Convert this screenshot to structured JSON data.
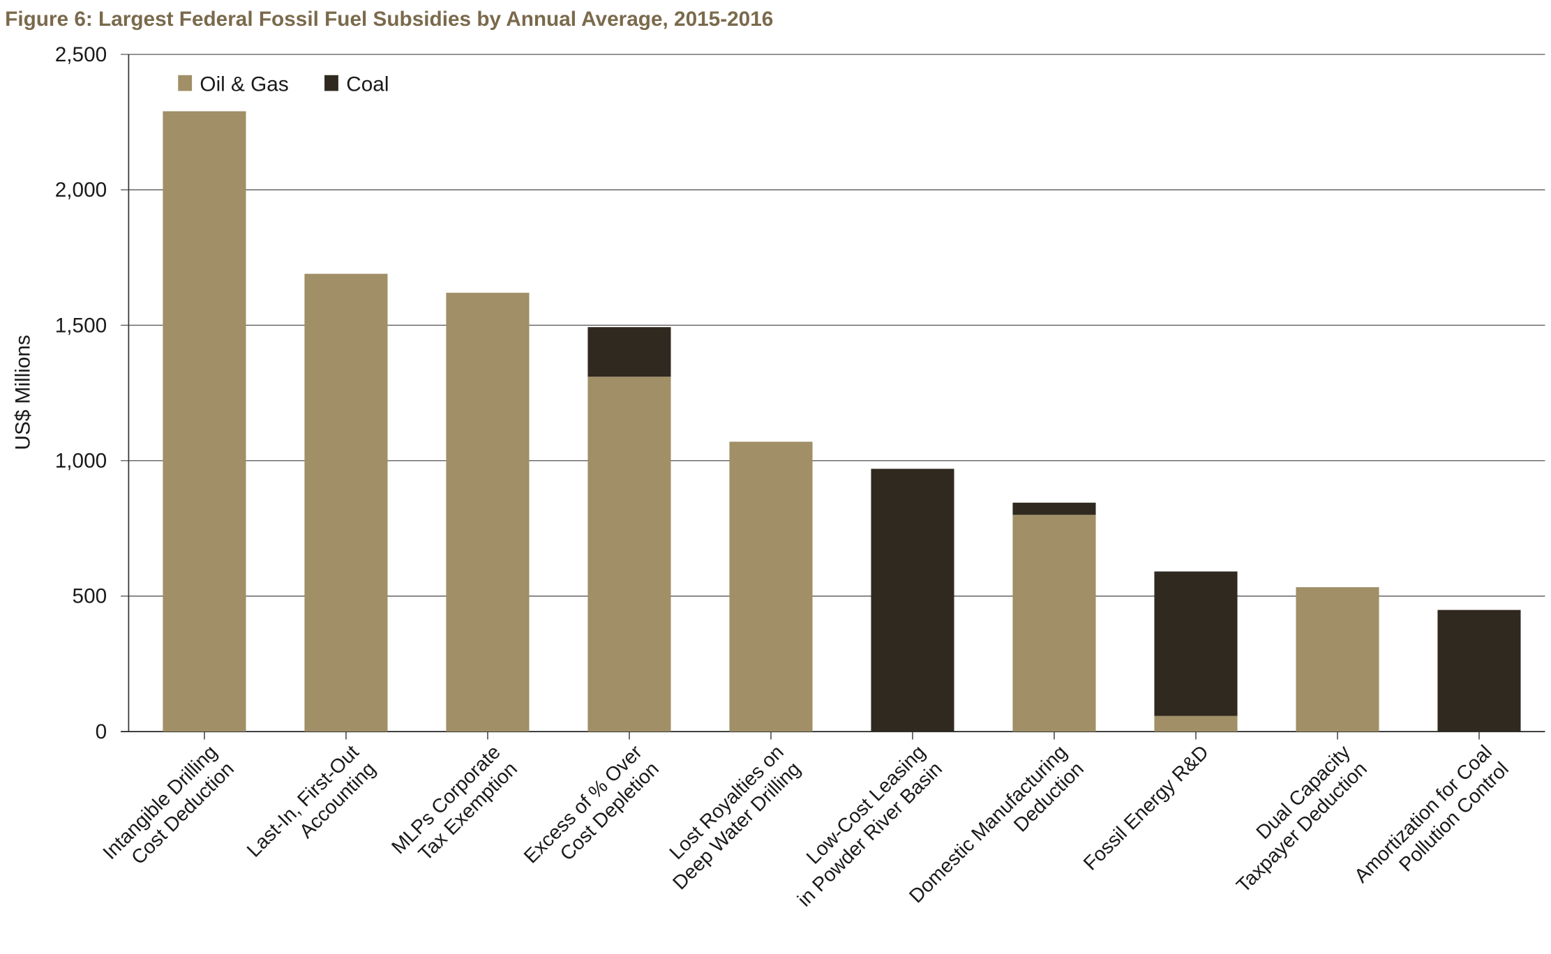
{
  "chart_data": {
    "type": "bar",
    "stacked": true,
    "title": "Figure 6: Largest Federal Fossil Fuel Subsidies by Annual Average, 2015-2016",
    "xlabel": "",
    "ylabel": "US$ Millions",
    "ylim": [
      0,
      2500
    ],
    "yticks": [
      0,
      500,
      1000,
      1500,
      2000,
      2500
    ],
    "ytick_labels": [
      "0",
      "500",
      "1,000",
      "1,500",
      "2,000",
      "2,500"
    ],
    "grid": "horizontal",
    "legend_position": "top-left",
    "categories": [
      [
        "Intangible Drilling",
        "Cost Deduction"
      ],
      [
        "Last-In, First-Out",
        "Accounting"
      ],
      [
        "MLPs Corporate",
        "Tax Exemption"
      ],
      [
        "Excess of % Over",
        "Cost Depletion"
      ],
      [
        "Lost Royalties on",
        "Deep Water Drilling"
      ],
      [
        "Low-Cost Leasing",
        "in Powder River Basin"
      ],
      [
        "Domestic Manufacturing",
        "Deduction"
      ],
      [
        "Fossil Energy R&D"
      ],
      [
        "Dual Capacity",
        "Taxpayer Deduction"
      ],
      [
        "Amortization for Coal",
        "Pollution Control"
      ]
    ],
    "series": [
      {
        "name": "Oil & Gas",
        "color": "#a08f67",
        "values": [
          2290,
          1690,
          1620,
          1310,
          1070,
          0,
          800,
          58,
          533,
          0
        ]
      },
      {
        "name": "Coal",
        "color": "#30291f",
        "values": [
          0,
          0,
          0,
          183,
          0,
          970,
          45,
          533,
          0,
          449
        ]
      }
    ],
    "title_color": "#7a6a4c"
  }
}
